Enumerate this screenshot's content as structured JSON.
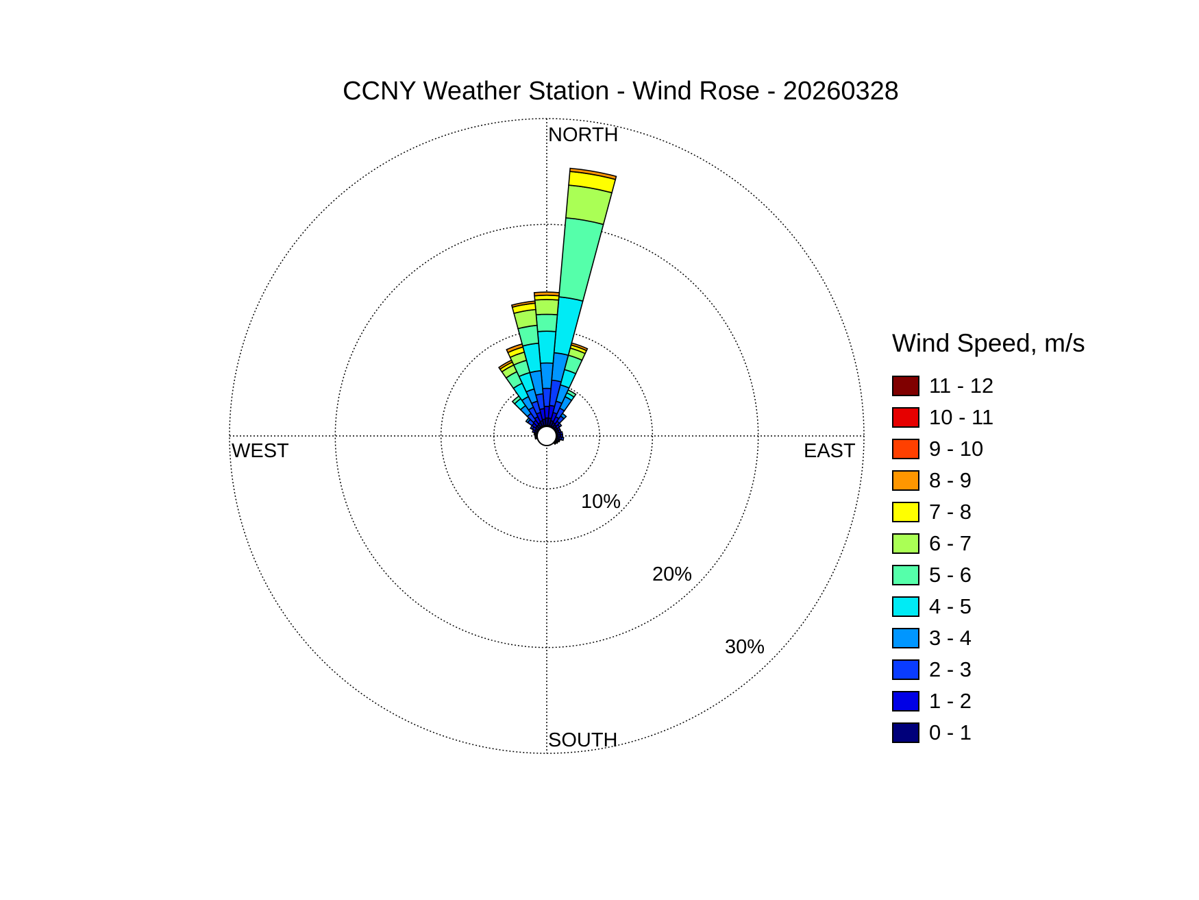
{
  "chart_data": {
    "type": "wind-rose",
    "title": "CCNY Weather Station - Wind Rose - 20260328",
    "directions": {
      "north": "NORTH",
      "east": "EAST",
      "south": "SOUTH",
      "west": "WEST"
    },
    "radial_ticks": [
      {
        "value": 10,
        "label": "10%"
      },
      {
        "value": 20,
        "label": "20%"
      },
      {
        "value": 30,
        "label": "30%"
      }
    ],
    "legend_title": "Wind Speed, m/s",
    "speed_bins": [
      {
        "label": "0 - 1",
        "color": "#00007a"
      },
      {
        "label": "1 - 2",
        "color": "#0000e6"
      },
      {
        "label": "2 - 3",
        "color": "#0a3cff"
      },
      {
        "label": "3 - 4",
        "color": "#0096ff"
      },
      {
        "label": "4 - 5",
        "color": "#00ebf5"
      },
      {
        "label": "5 - 6",
        "color": "#55ffaa"
      },
      {
        "label": "6 - 7",
        "color": "#aaff55"
      },
      {
        "label": "7 - 8",
        "color": "#ffff00"
      },
      {
        "label": "8 - 9",
        "color": "#ff9600"
      },
      {
        "label": "9 - 10",
        "color": "#ff4000"
      },
      {
        "label": "10 - 11",
        "color": "#e60000"
      },
      {
        "label": "11 - 12",
        "color": "#800000"
      }
    ],
    "sectors": [
      {
        "direction_deg": 10,
        "cumulative_percent": [
          1.0,
          1.7,
          2.9,
          5.3,
          7.9,
          13.2,
          20.7,
          23.8,
          25.1,
          25.4
        ]
      },
      {
        "direction_deg": 0,
        "cumulative_percent": [
          1.0,
          1.7,
          2.8,
          4.5,
          6.9,
          9.9,
          11.5,
          12.9,
          13.3,
          13.6
        ]
      },
      {
        "direction_deg": -10,
        "cumulative_percent": [
          1.0,
          1.6,
          2.6,
          4.0,
          6.2,
          8.8,
          10.5,
          12.0,
          12.6,
          12.8
        ]
      },
      {
        "direction_deg": 20,
        "cumulative_percent": [
          1.0,
          1.5,
          2.3,
          3.4,
          5.0,
          6.5,
          7.9,
          8.6,
          8.9,
          9.1
        ]
      },
      {
        "direction_deg": -20,
        "cumulative_percent": [
          1.0,
          1.5,
          2.3,
          3.4,
          4.6,
          6.2,
          7.4,
          8.2,
          8.7,
          9.0
        ]
      },
      {
        "direction_deg": -30,
        "cumulative_percent": [
          1.0,
          1.4,
          2.0,
          3.0,
          4.1,
          5.5,
          6.7,
          7.4,
          7.7,
          7.9
        ]
      },
      {
        "direction_deg": 30,
        "cumulative_percent": [
          1.0,
          1.4,
          2.0,
          2.9,
          4.1,
          4.5,
          4.8
        ]
      },
      {
        "direction_deg": -40,
        "cumulative_percent": [
          1.0,
          1.3,
          1.8,
          2.6,
          3.5,
          4.3,
          4.6
        ]
      },
      {
        "direction_deg": 40,
        "cumulative_percent": [
          1.0,
          1.3,
          1.7,
          2.3,
          2.6
        ]
      },
      {
        "direction_deg": -50,
        "cumulative_percent": [
          1.0,
          1.3,
          1.7,
          2.2,
          2.4
        ]
      },
      {
        "direction_deg": 50,
        "cumulative_percent": [
          1.0,
          1.2,
          1.5,
          1.7
        ]
      },
      {
        "direction_deg": -60,
        "cumulative_percent": [
          1.0,
          1.2,
          1.5,
          1.7
        ]
      },
      {
        "direction_deg": 60,
        "cumulative_percent": [
          1.0,
          1.2,
          1.4
        ]
      },
      {
        "direction_deg": -70,
        "cumulative_percent": [
          1.0,
          1.2,
          1.4
        ]
      },
      {
        "direction_deg": 70,
        "cumulative_percent": [
          1.0,
          1.2,
          1.4
        ]
      },
      {
        "direction_deg": 80,
        "cumulative_percent": [
          1.0,
          1.3,
          1.5
        ]
      },
      {
        "direction_deg": 90,
        "cumulative_percent": [
          1.0,
          1.3,
          1.5
        ]
      },
      {
        "direction_deg": 100,
        "cumulative_percent": [
          1.0,
          1.2,
          1.4,
          1.6
        ]
      },
      {
        "direction_deg": 110,
        "cumulative_percent": [
          1.0,
          1.2,
          1.3
        ]
      },
      {
        "direction_deg": 120,
        "cumulative_percent": [
          1.0,
          1.1,
          1.2
        ]
      },
      {
        "direction_deg": 130,
        "cumulative_percent": [
          1.0,
          1.1
        ]
      },
      {
        "direction_deg": -80,
        "cumulative_percent": [
          1.0,
          1.1,
          1.2
        ]
      },
      {
        "direction_deg": -90,
        "cumulative_percent": [
          1.0,
          1.1
        ]
      },
      {
        "direction_deg": -100,
        "cumulative_percent": [
          1.0,
          1.1
        ]
      }
    ],
    "grid": true,
    "rmax_percent": 30,
    "legend_position": "right"
  }
}
